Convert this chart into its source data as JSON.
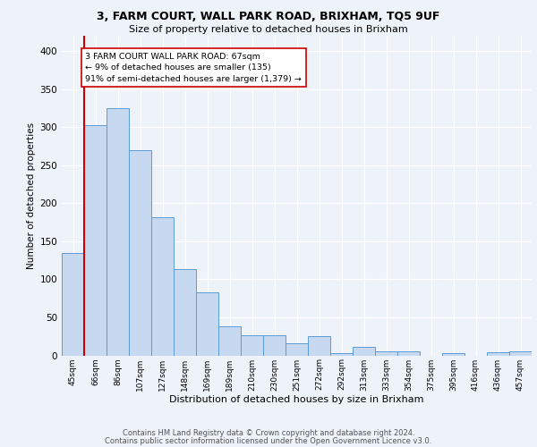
{
  "title1": "3, FARM COURT, WALL PARK ROAD, BRIXHAM, TQ5 9UF",
  "title2": "Size of property relative to detached houses in Brixham",
  "xlabel": "Distribution of detached houses by size in Brixham",
  "ylabel": "Number of detached properties",
  "categories": [
    "45sqm",
    "66sqm",
    "86sqm",
    "107sqm",
    "127sqm",
    "148sqm",
    "169sqm",
    "189sqm",
    "210sqm",
    "230sqm",
    "251sqm",
    "272sqm",
    "292sqm",
    "313sqm",
    "333sqm",
    "354sqm",
    "375sqm",
    "395sqm",
    "416sqm",
    "436sqm",
    "457sqm"
  ],
  "values": [
    135,
    303,
    325,
    270,
    182,
    113,
    83,
    38,
    27,
    27,
    16,
    25,
    3,
    11,
    5,
    5,
    0,
    3,
    0,
    4,
    5
  ],
  "bar_color": "#c6d9f1",
  "bar_edge_color": "#5b9bd5",
  "vline_color": "#cc0000",
  "vline_x": 0.5,
  "annotation_text": "3 FARM COURT WALL PARK ROAD: 67sqm\n← 9% of detached houses are smaller (135)\n91% of semi-detached houses are larger (1,379) →",
  "background_color": "#eef2f9",
  "grid_color": "#ffffff",
  "footer_line1": "Contains HM Land Registry data © Crown copyright and database right 2024.",
  "footer_line2": "Contains public sector information licensed under the Open Government Licence v3.0.",
  "ylim": [
    0,
    420
  ],
  "yticks": [
    0,
    50,
    100,
    150,
    200,
    250,
    300,
    350,
    400
  ]
}
